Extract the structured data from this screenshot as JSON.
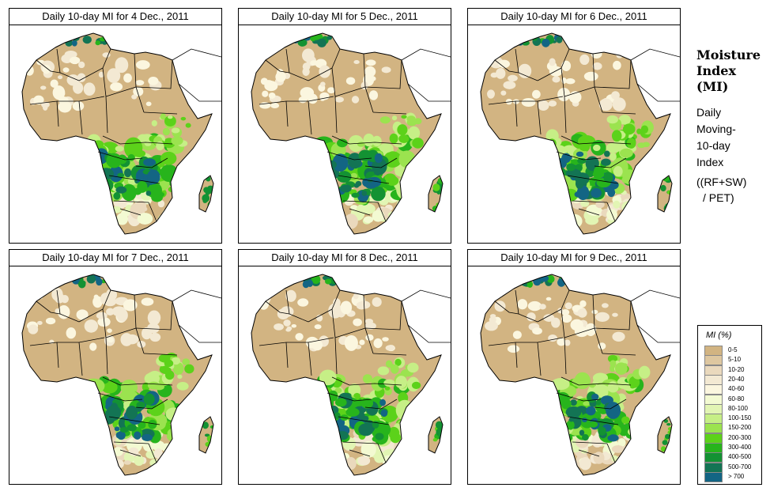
{
  "panels": [
    {
      "title": "Daily 10-day MI for  4 Dec., 2011"
    },
    {
      "title": "Daily 10-day MI for  5 Dec., 2011"
    },
    {
      "title": "Daily 10-day MI for  6 Dec., 2011"
    },
    {
      "title": "Daily 10-day MI for  7 Dec., 2011"
    },
    {
      "title": "Daily 10-day MI for  8 Dec., 2011"
    },
    {
      "title": "Daily 10-day MI for  9 Dec., 2011"
    }
  ],
  "side": {
    "title_line1": "Moisture",
    "title_line2": "Index",
    "title_line3": "(MI)",
    "desc_line1": "Daily",
    "desc_line2": "Moving-",
    "desc_line3": "10-day",
    "desc_line4": "Index",
    "formula_line1": "((RF+SW)",
    "formula_line2": "/ PET)"
  },
  "legend": {
    "title": "MI (%)",
    "classes": [
      {
        "label": "0-5",
        "color": "#d2b482"
      },
      {
        "label": "5-10",
        "color": "#dec7a0"
      },
      {
        "label": "10-20",
        "color": "#ead9bd"
      },
      {
        "label": "20-40",
        "color": "#f3e9d3"
      },
      {
        "label": "40-60",
        "color": "#fbf6df"
      },
      {
        "label": "60-80",
        "color": "#f3fad2"
      },
      {
        "label": "80-100",
        "color": "#e2f5b4"
      },
      {
        "label": "100-150",
        "color": "#c6ef86"
      },
      {
        "label": "150-200",
        "color": "#9be34f"
      },
      {
        "label": "200-300",
        "color": "#5cd21a"
      },
      {
        "label": "300-400",
        "color": "#27b41c"
      },
      {
        "label": "400-500",
        "color": "#139233"
      },
      {
        "label": "500-700",
        "color": "#137454"
      },
      {
        "label": "> 700",
        "color": "#136584"
      }
    ]
  },
  "map_colors": {
    "dry": "#d2b482",
    "desert_white": "#ffffff",
    "border": "#000000"
  }
}
